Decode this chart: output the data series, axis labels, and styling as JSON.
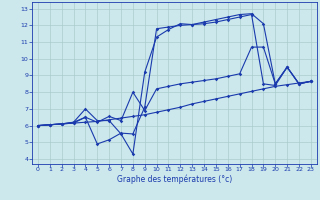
{
  "xlabel": "Graphe des températures (°c)",
  "bg_color": "#cce8ec",
  "grid_color": "#aacccc",
  "line_color": "#1a3aad",
  "xlim_min": -0.5,
  "xlim_max": 23.5,
  "ylim_min": 3.7,
  "ylim_max": 13.4,
  "xticks": [
    0,
    1,
    2,
    3,
    4,
    5,
    6,
    7,
    8,
    9,
    10,
    11,
    12,
    13,
    14,
    15,
    16,
    17,
    18,
    19,
    20,
    21,
    22,
    23
  ],
  "yticks": [
    4,
    5,
    6,
    7,
    8,
    9,
    10,
    11,
    12,
    13
  ],
  "line1_x": [
    0,
    1,
    2,
    3,
    4,
    5,
    6,
    7,
    8,
    9,
    10,
    11,
    12,
    13,
    14,
    15,
    16,
    17,
    18,
    19,
    20,
    21,
    22,
    23
  ],
  "line1_y": [
    6.0,
    6.05,
    6.1,
    6.15,
    6.2,
    6.25,
    6.35,
    6.45,
    6.55,
    6.65,
    6.8,
    6.95,
    7.1,
    7.3,
    7.45,
    7.6,
    7.75,
    7.9,
    8.05,
    8.2,
    8.35,
    8.45,
    8.55,
    8.65
  ],
  "line2_x": [
    0,
    1,
    2,
    3,
    4,
    5,
    6,
    7,
    8,
    9,
    10,
    11,
    12,
    13,
    14,
    15,
    16,
    17,
    18,
    19,
    20,
    21,
    22,
    23
  ],
  "line2_y": [
    6.0,
    6.05,
    6.1,
    6.2,
    7.0,
    6.3,
    6.3,
    5.5,
    4.3,
    9.2,
    11.3,
    11.75,
    12.1,
    12.05,
    12.2,
    12.35,
    12.5,
    12.65,
    12.7,
    12.1,
    8.5,
    9.5,
    8.5,
    8.65
  ],
  "line3_x": [
    0,
    1,
    2,
    3,
    4,
    5,
    6,
    7,
    8,
    9,
    10,
    11,
    12,
    13,
    14,
    15,
    16,
    17,
    18,
    19,
    20,
    21,
    22,
    23
  ],
  "line3_y": [
    6.0,
    6.05,
    6.1,
    6.15,
    6.5,
    4.9,
    5.15,
    5.55,
    5.5,
    7.1,
    11.8,
    11.9,
    12.0,
    12.05,
    12.1,
    12.2,
    12.35,
    12.5,
    12.65,
    8.5,
    8.4,
    9.5,
    8.5,
    8.65
  ],
  "line4_x": [
    0,
    1,
    2,
    3,
    4,
    5,
    6,
    7,
    8,
    9,
    10,
    11,
    12,
    13,
    14,
    15,
    16,
    17,
    18,
    19,
    20,
    21,
    22,
    23
  ],
  "line4_y": [
    6.0,
    6.05,
    6.1,
    6.2,
    6.5,
    6.2,
    6.55,
    6.3,
    8.0,
    6.9,
    8.2,
    8.35,
    8.5,
    8.6,
    8.7,
    8.8,
    8.95,
    9.1,
    10.7,
    10.7,
    8.5,
    9.5,
    8.5,
    8.65
  ]
}
